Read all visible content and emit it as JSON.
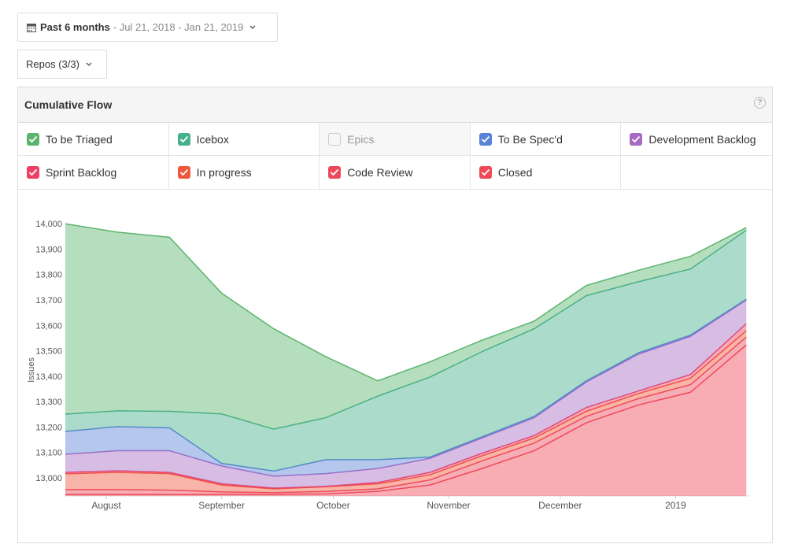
{
  "date_range": {
    "label": "Past 6 months",
    "range": "- Jul 21, 2018 - Jan 21, 2019"
  },
  "repos": "Repos (3/3)",
  "panel": {
    "title": "Cumulative Flow",
    "help": "?"
  },
  "chart_data": {
    "type": "stacked_area",
    "y_label": "Issues",
    "x": [
      0,
      14,
      28,
      42,
      56,
      70,
      84,
      98,
      112,
      126,
      140,
      154,
      168,
      183
    ],
    "xlim": [
      0,
      184
    ],
    "xticks": [
      {
        "value": 11,
        "label": "August"
      },
      {
        "value": 42,
        "label": "September"
      },
      {
        "value": 72,
        "label": "October"
      },
      {
        "value": 103,
        "label": "November"
      },
      {
        "value": 133,
        "label": "December"
      },
      {
        "value": 164,
        "label": "2019"
      }
    ],
    "ylim": [
      12932,
      14010
    ],
    "yticks": [
      {
        "value": 13000,
        "label": "13,000"
      },
      {
        "value": 13100,
        "label": "13,100"
      },
      {
        "value": 13200,
        "label": "13,200"
      },
      {
        "value": 13300,
        "label": "13,300"
      },
      {
        "value": 13400,
        "label": "13,400"
      },
      {
        "value": 13500,
        "label": "13,500"
      },
      {
        "value": 13600,
        "label": "13,600"
      },
      {
        "value": 13700,
        "label": "13,700"
      },
      {
        "value": 13800,
        "label": "13,800"
      },
      {
        "value": 13900,
        "label": "13,900"
      },
      {
        "value": 14000,
        "label": "14,000"
      }
    ],
    "grid": false,
    "series": [
      {
        "name": "To be Triaged",
        "color": "#5cb56e",
        "checked": true,
        "values": [
          749,
          703,
          685,
          475,
          395,
          240,
          60,
          60,
          45,
          30,
          40,
          45,
          50,
          10
        ]
      },
      {
        "name": "Icebox",
        "color": "#45b08a",
        "checked": true,
        "values": [
          68,
          62,
          65,
          195,
          165,
          165,
          250,
          315,
          335,
          345,
          335,
          280,
          260,
          272
        ]
      },
      {
        "name": "Epics",
        "color": "#bbbbbb",
        "checked": false
      },
      {
        "name": "To Be Spec'd",
        "color": "#5a82d8",
        "checked": true,
        "values": [
          90,
          95,
          90,
          10,
          20,
          55,
          35,
          5,
          5,
          5,
          5,
          5,
          5,
          3
        ]
      },
      {
        "name": "Development Backlog",
        "color": "#a66cc4",
        "checked": true,
        "values": [
          71,
          79,
          85,
          70,
          47,
          50,
          55,
          55,
          60,
          70,
          100,
          145,
          150,
          93
        ]
      },
      {
        "name": "Sprint Backlog",
        "color": "#ee4066",
        "checked": true,
        "values": [
          6,
          6,
          5,
          5,
          3,
          2,
          5,
          10,
          10,
          10,
          15,
          10,
          15,
          28
        ]
      },
      {
        "name": "In progress",
        "color": "#f0583e",
        "checked": true,
        "values": [
          62,
          68,
          65,
          27,
          15,
          18,
          20,
          20,
          20,
          20,
          20,
          20,
          25,
          25
        ]
      },
      {
        "name": "Code Review",
        "color": "#ec4a5c",
        "checked": true,
        "values": [
          19,
          19,
          17,
          10,
          7,
          10,
          10,
          20,
          30,
          30,
          25,
          25,
          30,
          31
        ]
      },
      {
        "name": "Closed",
        "color": "#f04a58",
        "checked": true,
        "values": [
          12938,
          12938,
          12938,
          12938,
          12938,
          12940,
          12950,
          12975,
          13040,
          13110,
          13220,
          13290,
          13340,
          13526
        ]
      }
    ]
  }
}
